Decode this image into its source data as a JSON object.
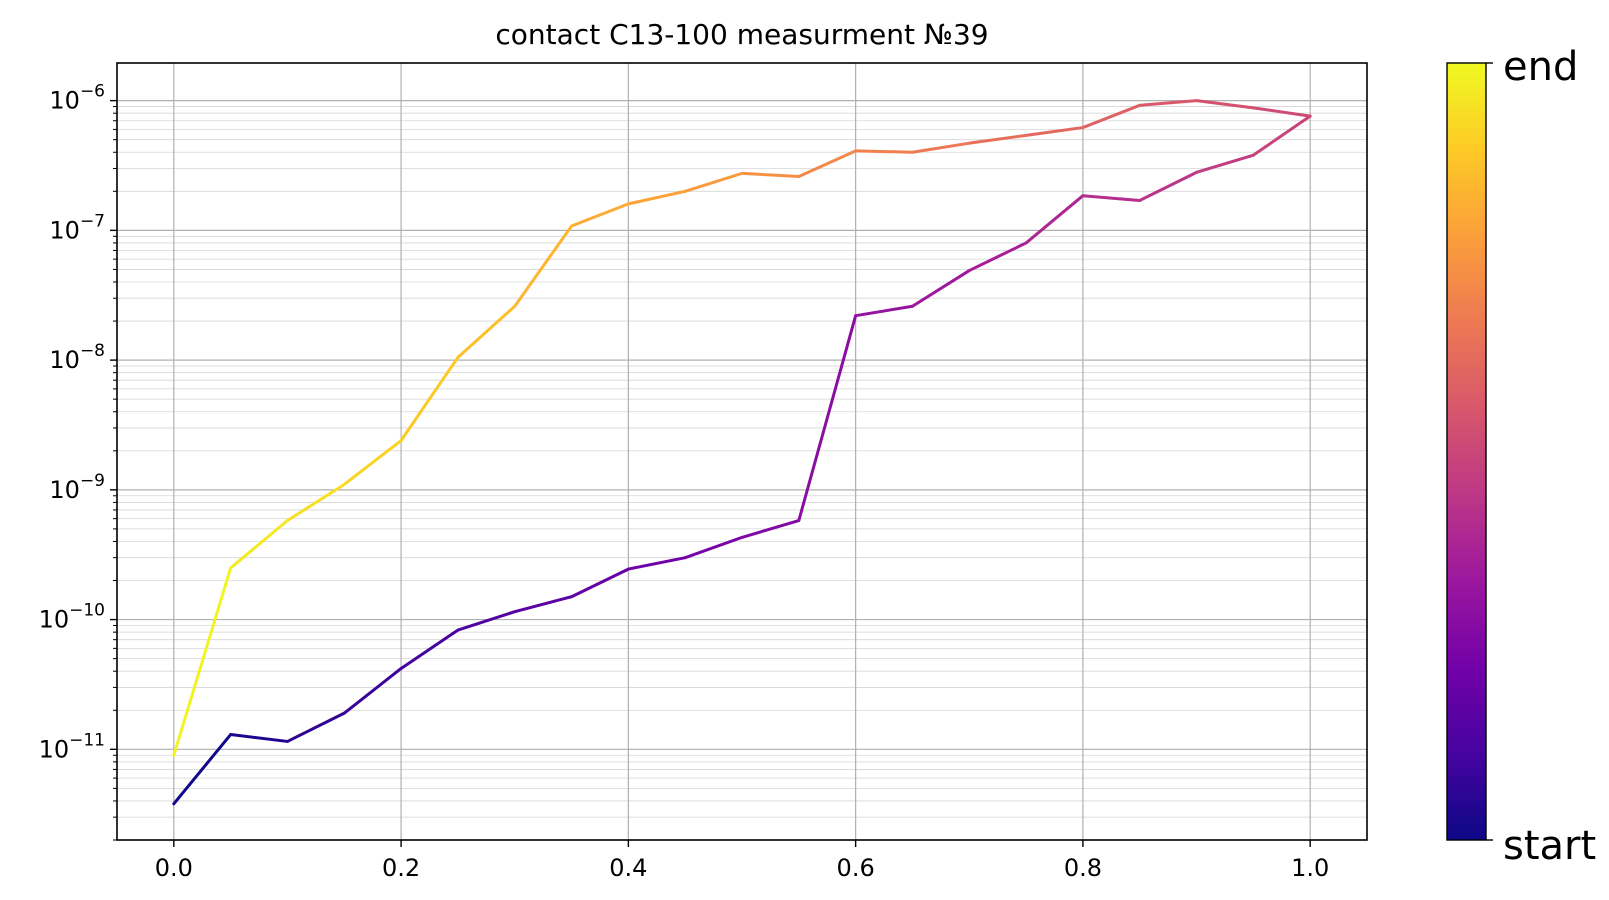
{
  "chart_data": {
    "type": "line",
    "title": "contact C13-100 measurment №39",
    "xlabel": "",
    "ylabel": "",
    "xlim": [
      -0.05,
      1.05
    ],
    "ylim": [
      2e-12,
      1.95e-06
    ],
    "yscale": "log",
    "grid": true,
    "xticks": [
      0.0,
      0.2,
      0.4,
      0.6,
      0.8,
      1.0
    ],
    "xtick_labels": [
      "0.0",
      "0.2",
      "0.4",
      "0.6",
      "0.8",
      "1.0"
    ],
    "yticks": [
      {
        "value": 1e-06,
        "mantissa": "10",
        "exponent": "−6"
      },
      {
        "value": 1e-07,
        "mantissa": "10",
        "exponent": "−7"
      },
      {
        "value": 1e-08,
        "mantissa": "10",
        "exponent": "−8"
      },
      {
        "value": 1e-09,
        "mantissa": "10",
        "exponent": "−9"
      },
      {
        "value": 1e-10,
        "mantissa": "10",
        "exponent": "−10"
      },
      {
        "value": 1e-11,
        "mantissa": "10",
        "exponent": "−11"
      }
    ],
    "colormap": "plasma",
    "colormap_stops": [
      "#0d0887",
      "#46039f",
      "#7201a8",
      "#9c179e",
      "#bd3786",
      "#d8576b",
      "#ed7953",
      "#fb9f3a",
      "#fdca26",
      "#f0f921"
    ],
    "colorbar": {
      "bottom_label": "start",
      "top_label": "end"
    },
    "sweep_forward": {
      "x": [
        0.0,
        0.05,
        0.1,
        0.15,
        0.2,
        0.25,
        0.3,
        0.35,
        0.4,
        0.45,
        0.5,
        0.55,
        0.6,
        0.65,
        0.7,
        0.75,
        0.8,
        0.85,
        0.9,
        0.95,
        1.0
      ],
      "y": [
        3.8e-12,
        1.3e-11,
        1.15e-11,
        1.9e-11,
        4.2e-11,
        8.3e-11,
        1.15e-10,
        1.5e-10,
        2.45e-10,
        3e-10,
        4.3e-10,
        5.8e-10,
        2.2e-08,
        2.6e-08,
        4.9e-08,
        8e-08,
        1.85e-07,
        1.7e-07,
        2.8e-07,
        3.8e-07,
        7.6e-07
      ]
    },
    "sweep_backward": {
      "x": [
        1.0,
        0.95,
        0.9,
        0.85,
        0.8,
        0.75,
        0.7,
        0.65,
        0.6,
        0.55,
        0.5,
        0.45,
        0.4,
        0.35,
        0.3,
        0.25,
        0.2,
        0.15,
        0.1,
        0.05,
        0.0
      ],
      "y": [
        7.6e-07,
        8.8e-07,
        1e-06,
        9.2e-07,
        6.2e-07,
        5.4e-07,
        4.7e-07,
        4e-07,
        4.1e-07,
        2.6e-07,
        2.75e-07,
        2e-07,
        1.6e-07,
        1.08e-07,
        2.6e-08,
        1.05e-08,
        2.4e-09,
        1.1e-09,
        5.8e-10,
        2.5e-10,
        9e-12
      ]
    }
  }
}
